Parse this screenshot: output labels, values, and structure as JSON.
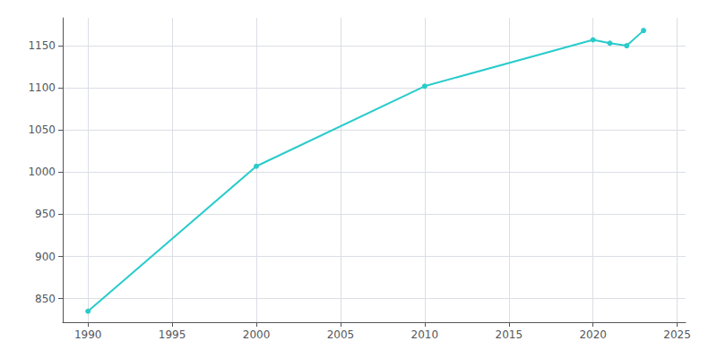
{
  "chart_data": {
    "type": "line",
    "x": [
      1990,
      2000,
      2010,
      2020,
      2021,
      2022,
      2023
    ],
    "values": [
      835,
      1007,
      1102,
      1157,
      1153,
      1150,
      1168
    ],
    "color": "#2acbcb",
    "marker": "circle",
    "xlim": [
      1988.5,
      2025.5
    ],
    "ylim": [
      822,
      1183
    ],
    "xticks": [
      1990,
      1995,
      2000,
      2005,
      2010,
      2015,
      2020,
      2025
    ],
    "yticks": [
      850,
      900,
      950,
      1000,
      1050,
      1100,
      1150
    ],
    "grid": true
  }
}
